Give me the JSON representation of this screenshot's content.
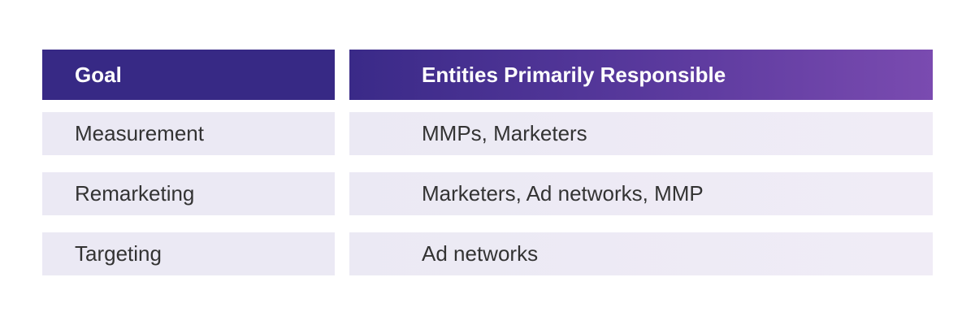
{
  "table": {
    "headers": {
      "goal": "Goal",
      "entities": "Entities Primarily Responsible"
    },
    "rows": [
      {
        "goal": "Measurement",
        "entities": "MMPs, Marketers"
      },
      {
        "goal": "Remarketing",
        "entities": "Marketers, Ad networks, MMP"
      },
      {
        "goal": "Targeting",
        "entities": "Ad networks"
      }
    ]
  },
  "colors": {
    "header_left": "#372985",
    "header_right_end": "#7a4bb0",
    "row_background": "#ebe9f4",
    "text": "#333333"
  }
}
